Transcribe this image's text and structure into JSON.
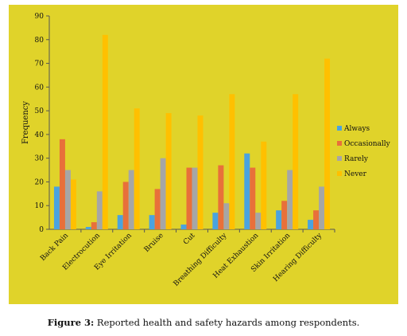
{
  "chart_data": {
    "type": "bar",
    "title": "",
    "ylabel": "Frequency",
    "xlabel": "",
    "ylim": [
      0,
      90
    ],
    "yticks": [
      0,
      10,
      20,
      30,
      40,
      50,
      60,
      70,
      80,
      90
    ],
    "grid": false,
    "legend_placement": "right",
    "categories": [
      "Back Pain",
      "Electrocution",
      "Eye Irritation",
      "Bruise",
      "Cut",
      "Breathing Difficulty",
      "Heat Exhaustion",
      "Skin Irritation",
      "Hearing Difficulty"
    ],
    "series": [
      {
        "name": "Always",
        "color": "#4aa3df",
        "values": [
          18,
          1,
          6,
          6,
          2,
          7,
          32,
          8,
          4
        ]
      },
      {
        "name": "Occasionally",
        "color": "#e8703a",
        "values": [
          38,
          3,
          20,
          17,
          26,
          27,
          26,
          12,
          8
        ]
      },
      {
        "name": "Rarely",
        "color": "#a6a6a6",
        "values": [
          25,
          16,
          25,
          30,
          26,
          11,
          7,
          25,
          18
        ]
      },
      {
        "name": "Never",
        "color": "#ffc000",
        "values": [
          21,
          82,
          51,
          49,
          48,
          57,
          37,
          57,
          72
        ]
      }
    ]
  },
  "caption": {
    "label": "Figure 3:",
    "text": " Reported health and safety hazards among respondents."
  }
}
